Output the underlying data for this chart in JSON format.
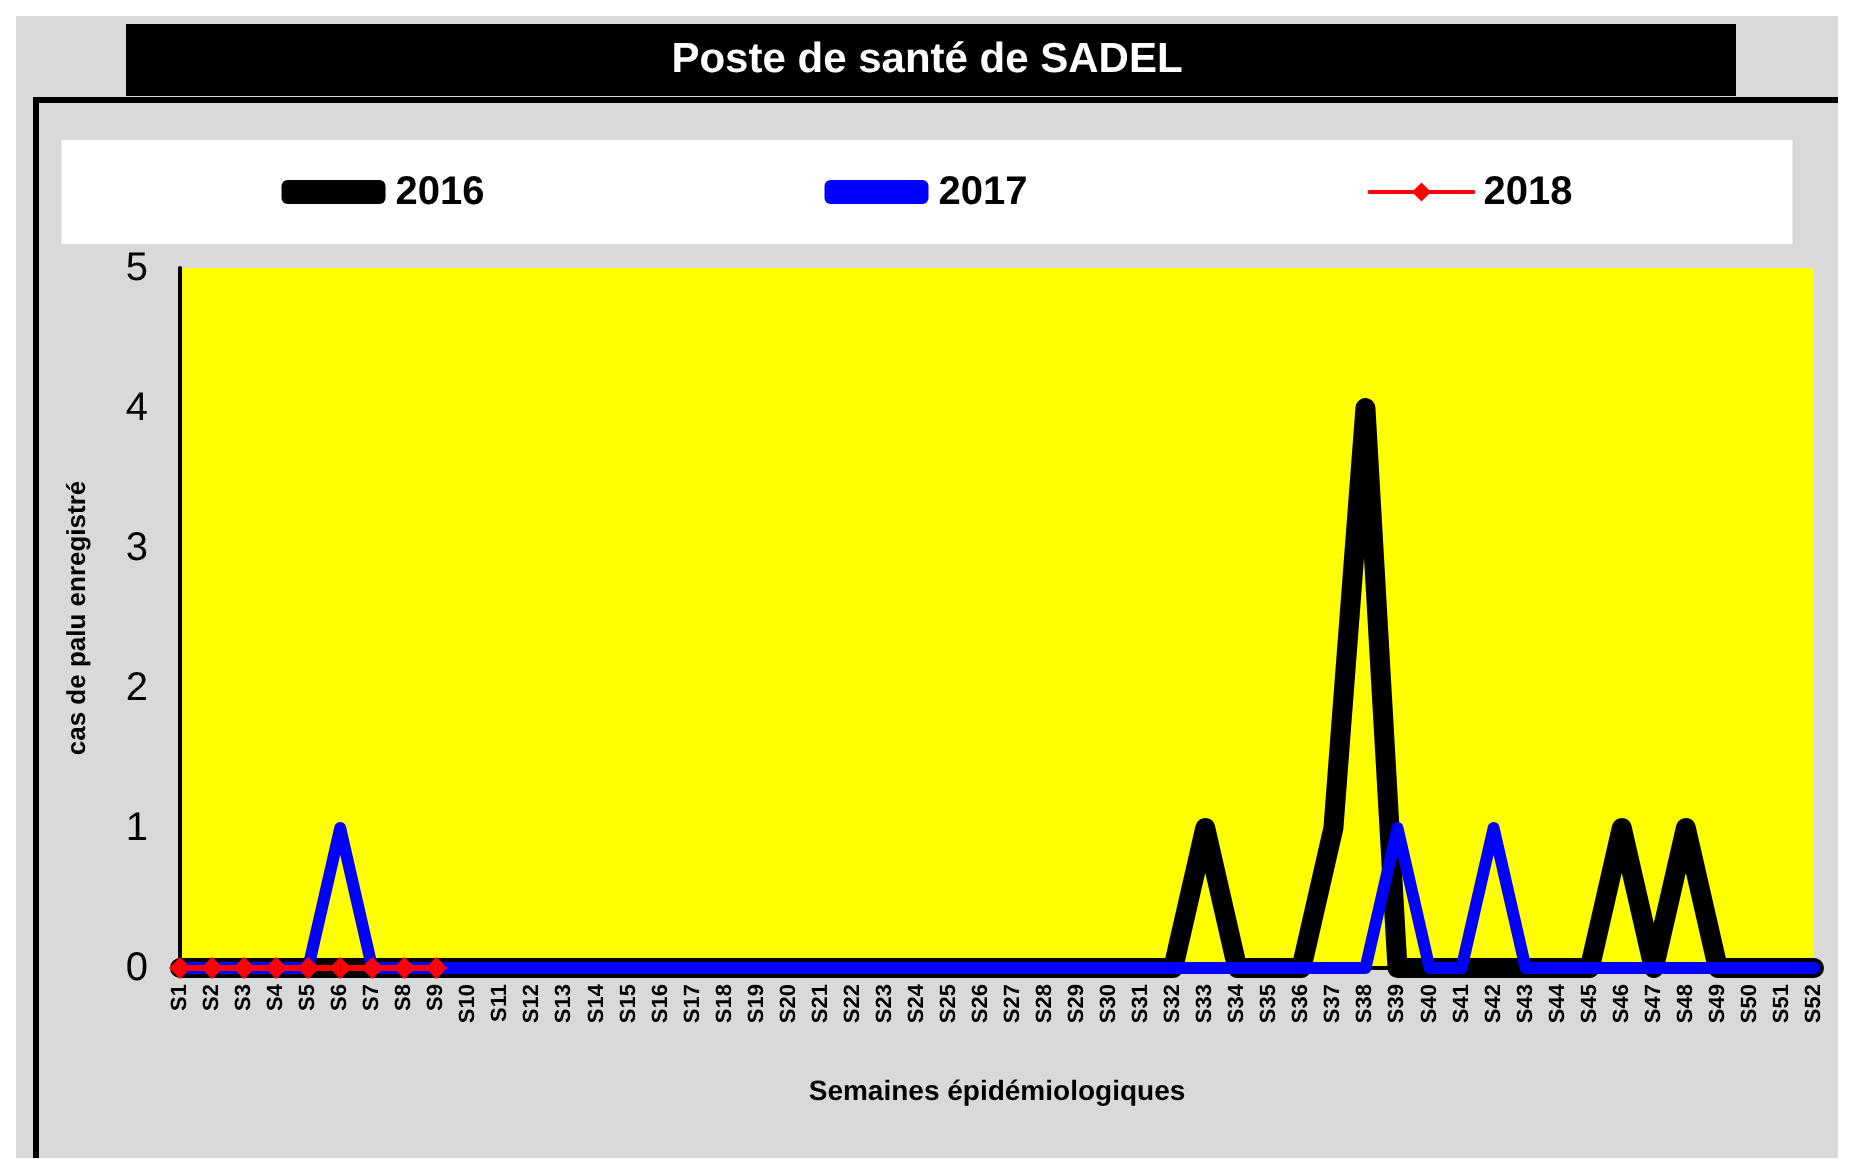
{
  "chart_data": {
    "type": "line",
    "title": "Poste de santé de SADEL",
    "xlabel": "Semaines épidémiologiques",
    "ylabel": "cas de palu enregistré",
    "categories": [
      "S1",
      "S2",
      "S3",
      "S4",
      "S5",
      "S6",
      "S7",
      "S8",
      "S9",
      "S10",
      "S11",
      "S12",
      "S13",
      "S14",
      "S15",
      "S16",
      "S17",
      "S18",
      "S19",
      "S20",
      "S21",
      "S22",
      "S23",
      "S24",
      "S25",
      "S26",
      "S27",
      "S28",
      "S29",
      "S30",
      "S31",
      "S32",
      "S33",
      "S34",
      "S35",
      "S36",
      "S37",
      "S38",
      "S39",
      "S40",
      "S41",
      "S42",
      "S43",
      "S44",
      "S45",
      "S46",
      "S47",
      "S48",
      "S49",
      "S50",
      "S51",
      "S52"
    ],
    "series": [
      {
        "name": "2016",
        "color": "#000000",
        "marker": "none",
        "values": [
          0,
          0,
          0,
          0,
          0,
          0,
          0,
          0,
          0,
          0,
          0,
          0,
          0,
          0,
          0,
          0,
          0,
          0,
          0,
          0,
          0,
          0,
          0,
          0,
          0,
          0,
          0,
          0,
          0,
          0,
          0,
          0,
          1,
          0,
          0,
          0,
          1,
          4,
          0,
          0,
          0,
          0,
          0,
          0,
          0,
          1,
          0,
          1,
          0,
          0,
          0,
          0
        ]
      },
      {
        "name": "2017",
        "color": "#0000ff",
        "marker": "none",
        "values": [
          0,
          0,
          0,
          0,
          0,
          1,
          0,
          0,
          0,
          0,
          0,
          0,
          0,
          0,
          0,
          0,
          0,
          0,
          0,
          0,
          0,
          0,
          0,
          0,
          0,
          0,
          0,
          0,
          0,
          0,
          0,
          0,
          0,
          0,
          0,
          0,
          0,
          0,
          1,
          0,
          0,
          1,
          0,
          0,
          0,
          0,
          0,
          0,
          0,
          0,
          0,
          0
        ]
      },
      {
        "name": "2018",
        "color": "#ff0000",
        "marker": "diamond",
        "values": [
          0,
          0,
          0,
          0,
          0,
          0,
          0,
          0,
          0,
          null,
          null,
          null,
          null,
          null,
          null,
          null,
          null,
          null,
          null,
          null,
          null,
          null,
          null,
          null,
          null,
          null,
          null,
          null,
          null,
          null,
          null,
          null,
          null,
          null,
          null,
          null,
          null,
          null,
          null,
          null,
          null,
          null,
          null,
          null,
          null,
          null,
          null,
          null,
          null,
          null,
          null,
          null
        ]
      }
    ],
    "ylim": [
      0,
      5
    ],
    "yticks": [
      0,
      1,
      2,
      3,
      4,
      5
    ],
    "grid": false,
    "legend": "top",
    "line_style": "solid"
  }
}
